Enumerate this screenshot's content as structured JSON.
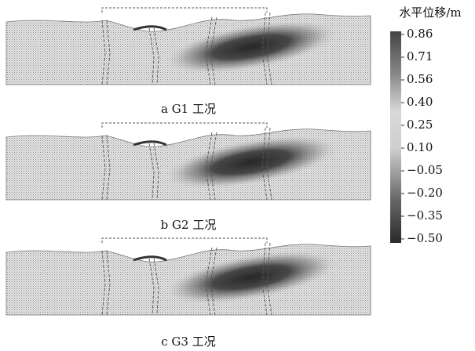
{
  "panels": [
    {
      "caption": "a G1 工况"
    },
    {
      "caption": "b G2 工况"
    },
    {
      "caption": "c G3 工况"
    }
  ],
  "colorbar": {
    "title": "水平位移/m",
    "ticks": [
      "0.86",
      "0.71",
      "0.56",
      "0.40",
      "0.25",
      "0.10",
      "−0.05",
      "−0.20",
      "−0.35",
      "−0.50"
    ]
  }
}
